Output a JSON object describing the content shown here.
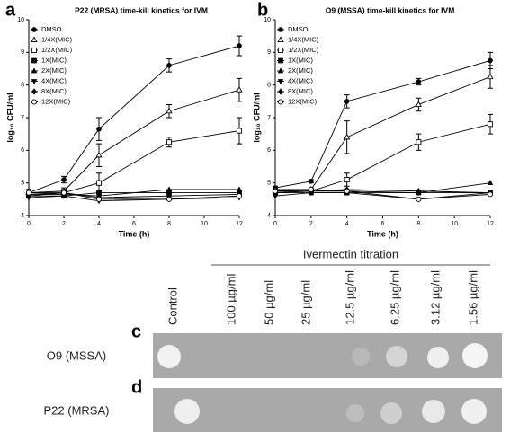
{
  "chart_data": [
    {
      "type": "line",
      "panel": "a",
      "title": "P22 (MRSA) time-kill kinetics for IVM",
      "x_label": "Time (h)",
      "y_label": "log₁₀ CFU/ml",
      "x": [
        0,
        2,
        4,
        8,
        12
      ],
      "xlim": [
        0,
        12
      ],
      "xticks": [
        0,
        2,
        4,
        6,
        8,
        10,
        12
      ],
      "ylim": [
        4,
        10
      ],
      "yticks": [
        4,
        5,
        6,
        7,
        8,
        9,
        10
      ],
      "series": [
        {
          "name": "DMSO",
          "color": "#000000",
          "marker": "circle",
          "values": [
            4.7,
            5.1,
            6.65,
            8.6,
            9.2
          ],
          "errors": [
            0.1,
            0.1,
            0.35,
            0.2,
            0.3
          ]
        },
        {
          "name": "1/4X(MIC)",
          "color": "#000000",
          "marker": "triangle-open",
          "values": [
            4.7,
            4.75,
            5.85,
            7.2,
            7.85
          ],
          "errors": [
            0.1,
            0.1,
            0.35,
            0.2,
            0.35
          ]
        },
        {
          "name": "1/2X(MIC)",
          "color": "#000000",
          "marker": "square-open",
          "values": [
            4.65,
            4.7,
            5.0,
            6.25,
            6.6
          ],
          "errors": [
            0.05,
            0.1,
            0.3,
            0.15,
            0.4
          ]
        },
        {
          "name": "1X(MIC)",
          "color": "#000000",
          "marker": "square",
          "values": [
            4.6,
            4.6,
            4.7,
            4.7,
            4.7
          ]
        },
        {
          "name": "2X(MIC)",
          "color": "#000000",
          "marker": "triangle",
          "values": [
            4.65,
            4.65,
            4.6,
            4.8,
            4.8
          ]
        },
        {
          "name": "4X(MIC)",
          "color": "#000000",
          "marker": "triangle-down",
          "values": [
            4.55,
            4.6,
            4.45,
            4.5,
            4.55
          ]
        },
        {
          "name": "8X(MIC)",
          "color": "#000000",
          "marker": "diamond",
          "values": [
            4.6,
            4.7,
            4.55,
            4.6,
            4.65
          ]
        },
        {
          "name": "12X(MIC)",
          "color": "#000000",
          "marker": "circle-open",
          "values": [
            4.7,
            4.7,
            4.5,
            4.5,
            4.6
          ]
        }
      ]
    },
    {
      "type": "line",
      "panel": "b",
      "title": "O9 (MSSA) time-kill kinetics for IVM",
      "x_label": "Time (h)",
      "y_label": "log₁₀ CFU/ml",
      "x": [
        0,
        2,
        4,
        8,
        12
      ],
      "xlim": [
        0,
        12
      ],
      "xticks": [
        0,
        2,
        4,
        6,
        8,
        10,
        12
      ],
      "ylim": [
        4,
        10
      ],
      "yticks": [
        4,
        5,
        6,
        7,
        8,
        9,
        10
      ],
      "series": [
        {
          "name": "DMSO",
          "color": "#000000",
          "marker": "circle",
          "values": [
            4.85,
            5.05,
            7.5,
            8.1,
            8.75
          ],
          "errors": [
            0.05,
            0.05,
            0.2,
            0.1,
            0.25
          ]
        },
        {
          "name": "1/4X(MIC)",
          "color": "#000000",
          "marker": "triangle-open",
          "values": [
            4.8,
            4.8,
            6.4,
            7.4,
            8.25
          ],
          "errors": [
            0.05,
            0.05,
            0.5,
            0.2,
            0.35
          ]
        },
        {
          "name": "1/2X(MIC)",
          "color": "#000000",
          "marker": "square-open",
          "values": [
            4.75,
            4.75,
            5.1,
            6.25,
            6.8
          ],
          "errors": [
            0.05,
            0.05,
            0.2,
            0.25,
            0.3
          ]
        },
        {
          "name": "1X(MIC)",
          "color": "#000000",
          "marker": "square",
          "values": [
            4.7,
            4.7,
            4.7,
            4.7,
            4.7
          ]
        },
        {
          "name": "2X(MIC)",
          "color": "#000000",
          "marker": "triangle",
          "values": [
            4.75,
            4.75,
            4.75,
            4.7,
            5.0
          ]
        },
        {
          "name": "4X(MIC)",
          "color": "#000000",
          "marker": "triangle-down",
          "values": [
            4.6,
            4.7,
            4.7,
            4.5,
            4.7
          ]
        },
        {
          "name": "8X(MIC)",
          "color": "#000000",
          "marker": "diamond",
          "values": [
            4.7,
            4.75,
            4.8,
            4.75,
            4.7
          ]
        },
        {
          "name": "12X(MIC)",
          "color": "#000000",
          "marker": "circle-open",
          "values": [
            4.75,
            4.8,
            4.75,
            4.5,
            4.65
          ]
        }
      ]
    }
  ],
  "plate": {
    "title": "Ivermectin titration",
    "columns": [
      "Control",
      "100 µg/ml",
      "50 µg/ml",
      "25 µg/ml",
      "12.5 µg/ml",
      "6.25 µg/ml",
      "3.12 µg/ml",
      "1.56 µg/ml"
    ],
    "rows": [
      {
        "panel": "c",
        "label": "O9 (MSSA)"
      },
      {
        "panel": "d",
        "label": "P22 (MRSA)"
      }
    ]
  }
}
